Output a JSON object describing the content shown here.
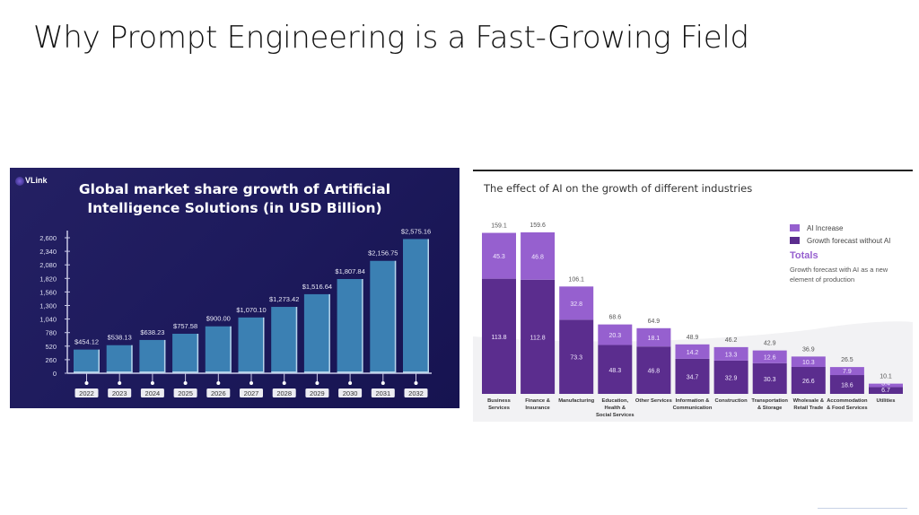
{
  "slide": {
    "title": "Why Prompt Engineering is a Fast-Growing Field"
  },
  "logo": {
    "text": "VLink"
  },
  "colors": {
    "left_bar": "#3b80b3",
    "left_bar_edge": "#b7d3ea",
    "ai_increase": "#9660cf",
    "without_ai": "#5b2d8e",
    "totals": "#9660cf"
  },
  "legend": {
    "ai_increase": "AI Increase",
    "without_ai": "Growth forecast without AI",
    "totals_heading": "Totals",
    "totals_desc": "Growth forecast with AI as a new element of production"
  },
  "chart_data": [
    {
      "type": "bar",
      "title": "Global market share growth of Artificial Intelligence Solutions (in USD Billion)",
      "title_lines": [
        "Global market share growth of Artificial",
        "Intelligence Solutions (in USD Billion)"
      ],
      "xlabel": "",
      "ylabel": "",
      "categories": [
        "2022",
        "2023",
        "2024",
        "2025",
        "2026",
        "2027",
        "2028",
        "2029",
        "2030",
        "2031",
        "2032"
      ],
      "values": [
        454.12,
        538.13,
        638.23,
        757.58,
        900.0,
        1070.1,
        1273.42,
        1516.64,
        1807.84,
        2156.75,
        2575.16
      ],
      "data_labels": [
        "$454.12",
        "$538.13",
        "$638.23",
        "$757.58",
        "$900.00",
        "$1,070.10",
        "$1,273.42",
        "$1,516.64",
        "$1,807.84",
        "$2,156.75",
        "$2,575.16"
      ],
      "yticks": [
        0,
        260,
        520,
        780,
        1040,
        1300,
        1560,
        1820,
        2080,
        2340,
        2600
      ],
      "ytick_labels": [
        "0",
        "260",
        "520",
        "780",
        "1,040",
        "1,300",
        "1,560",
        "1,820",
        "2,080",
        "2,340",
        "2,600"
      ],
      "ylim": [
        0,
        2600
      ],
      "grid": false,
      "legend": "none"
    },
    {
      "type": "bar",
      "stacked": true,
      "title": "The effect of AI on the growth of different industries",
      "xlabel": "",
      "ylabel": "",
      "categories": [
        [
          "Business",
          "Services"
        ],
        [
          "Finance &",
          "Insurance"
        ],
        [
          "Manufacturing"
        ],
        [
          "Education,",
          "Health &",
          "Social Services"
        ],
        [
          "Other Services"
        ],
        [
          "Information &",
          "Communication"
        ],
        [
          "Construction"
        ],
        [
          "Transportation",
          "& Storage"
        ],
        [
          "Wholesale &",
          "Retail Trade"
        ],
        [
          "Accommodation",
          "& Food Services"
        ],
        [
          "Utilities"
        ]
      ],
      "series": [
        {
          "name": "Growth forecast without AI",
          "values": [
            113.8,
            112.8,
            73.3,
            48.3,
            46.8,
            34.7,
            32.9,
            30.3,
            26.6,
            18.6,
            6.7
          ]
        },
        {
          "name": "AI Increase",
          "values": [
            45.3,
            46.8,
            32.8,
            20.3,
            18.1,
            14.2,
            13.3,
            12.6,
            10.3,
            7.9,
            3.4
          ]
        }
      ],
      "totals": [
        159.1,
        159.6,
        106.1,
        68.6,
        64.9,
        48.9,
        46.2,
        42.9,
        36.9,
        26.5,
        10.1
      ],
      "ylim": [
        0,
        160
      ],
      "grid": false,
      "legend": "top-right"
    }
  ]
}
